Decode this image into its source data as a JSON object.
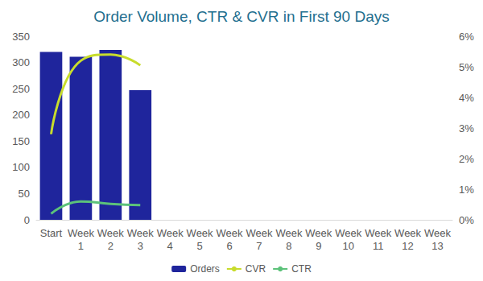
{
  "chart_data": {
    "type": "bar",
    "title": "Order Volume, CTR & CVR in First 90 Days",
    "categories": [
      "Start",
      "Week 1",
      "Week 2",
      "Week 3",
      "Week 4",
      "Week 5",
      "Week 6",
      "Week 7",
      "Week 8",
      "Week 9",
      "Week 10",
      "Week 11",
      "Week 12",
      "Week 13"
    ],
    "series": [
      {
        "name": "Orders",
        "type": "bar",
        "color": "#1f259c",
        "values": [
          320,
          311,
          324,
          247,
          null,
          null,
          null,
          null,
          null,
          null,
          null,
          null,
          null,
          null
        ]
      },
      {
        "name": "CVR",
        "type": "line",
        "axis": "y2",
        "color": "#c8dc2c",
        "values": [
          2.8,
          5.2,
          5.4,
          5.05,
          null,
          null,
          null,
          null,
          null,
          null,
          null,
          null,
          null,
          null
        ]
      },
      {
        "name": "CTR",
        "type": "line",
        "axis": "y2",
        "color": "#5cc27a",
        "values": [
          0.2,
          0.6,
          0.52,
          0.48,
          null,
          null,
          null,
          null,
          null,
          null,
          null,
          null,
          null,
          null
        ]
      }
    ],
    "ylim": [
      0,
      350
    ],
    "yticks": [
      0,
      50,
      100,
      150,
      200,
      250,
      300,
      350
    ],
    "y2lim": [
      0,
      6
    ],
    "y2ticks": [
      {
        "value": 0,
        "label": "0%"
      },
      {
        "value": 1,
        "label": "1%"
      },
      {
        "value": 2,
        "label": "2%"
      },
      {
        "value": 3,
        "label": "3%"
      },
      {
        "value": 4,
        "label": "4%"
      },
      {
        "value": 5,
        "label": "5%"
      },
      {
        "value": 6,
        "label": "6%"
      }
    ],
    "grid": false,
    "legend": "bottom"
  }
}
